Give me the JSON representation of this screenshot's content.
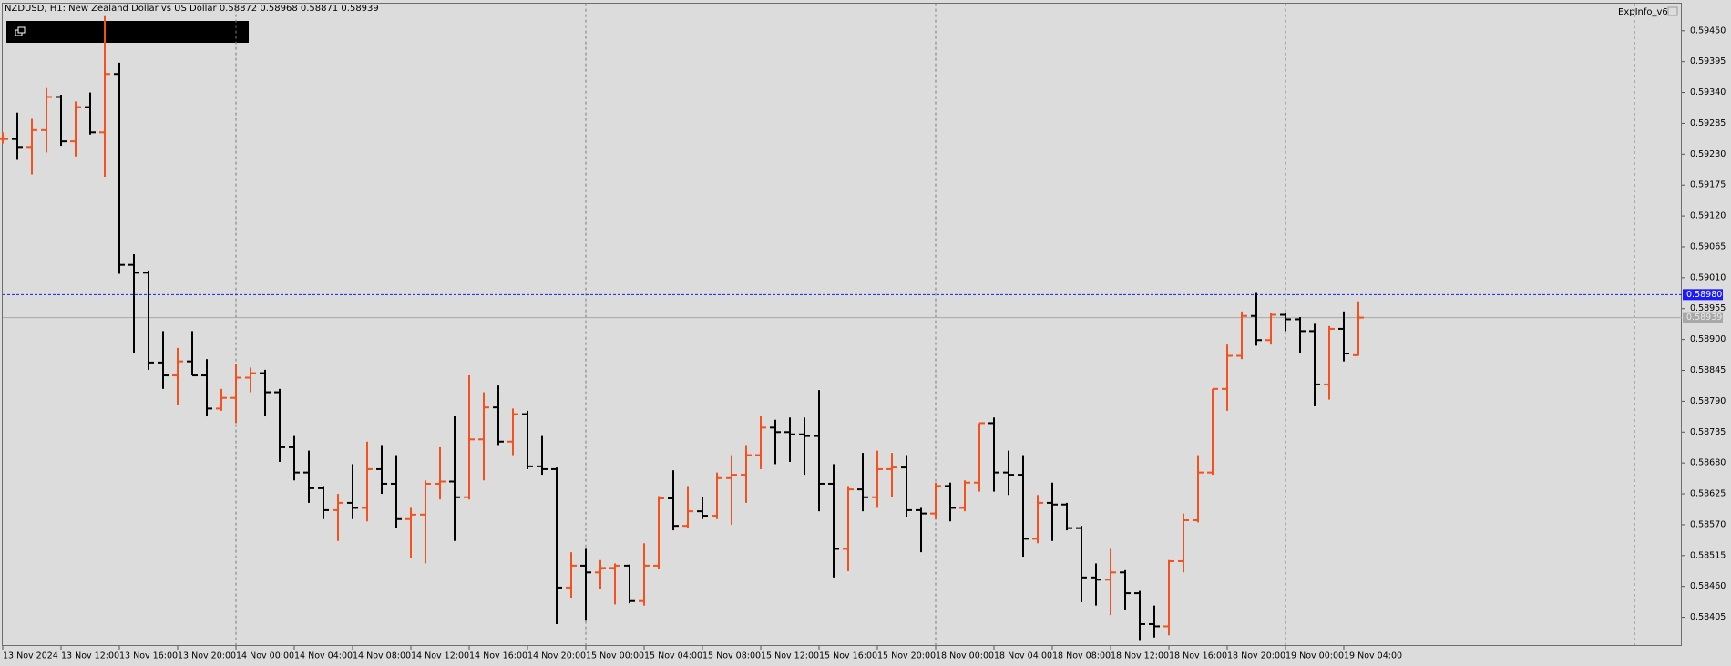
{
  "chart_data": {
    "type": "ohlc",
    "title": "NZDUSD, H1:  New Zealand Dollar vs US Dollar  0.58872 0.58968 0.58871 0.58939",
    "indicator_label": "ExpInfo_v6",
    "up_color": "#f4511e",
    "down_color": "#000000",
    "period_separators": true,
    "categories": [
      "13 Nov 2024",
      null,
      null,
      null,
      "13 Nov 12:00",
      null,
      null,
      null,
      "13 Nov 16:00",
      null,
      null,
      null,
      "13 Nov 20:00",
      null,
      null,
      null,
      "14 Nov 00:00",
      null,
      null,
      null,
      "14 Nov 04:00",
      null,
      null,
      null,
      "14 Nov 08:00",
      null,
      null,
      null,
      "14 Nov 12:00",
      null,
      null,
      null,
      "14 Nov 16:00",
      null,
      null,
      null,
      "14 Nov 20:00",
      null,
      null,
      null,
      "15 Nov 00:00",
      null,
      null,
      null,
      "15 Nov 04:00",
      null,
      null,
      null,
      "15 Nov 08:00",
      null,
      null,
      null,
      "15 Nov 12:00",
      null,
      null,
      null,
      "15 Nov 16:00",
      null,
      null,
      null,
      "15 Nov 20:00",
      null,
      null,
      null,
      "18 Nov 00:00",
      null,
      null,
      null,
      "18 Nov 04:00",
      null,
      null,
      null,
      "18 Nov 08:00",
      null,
      null,
      null,
      "18 Nov 12:00",
      null,
      null,
      null,
      "18 Nov 16:00",
      null,
      null,
      null,
      "18 Nov 20:00",
      null,
      null,
      null,
      "19 Nov 00:00",
      null,
      null,
      null,
      "19 Nov 04:00",
      null
    ],
    "open": [
      0.59257,
      0.59257,
      0.59243,
      0.59273,
      0.59332,
      0.59253,
      0.59314,
      0.59269,
      0.59373,
      0.59033,
      0.59019,
      0.58859,
      0.58836,
      0.58861,
      0.58836,
      0.58777,
      0.58796,
      0.58832,
      0.5884,
      0.58806,
      0.58708,
      0.58663,
      0.58635,
      0.58596,
      0.58609,
      0.586,
      0.58669,
      0.58643,
      0.5858,
      0.58588,
      0.58643,
      0.58647,
      0.58619,
      0.58722,
      0.58779,
      0.58718,
      0.58767,
      0.58674,
      0.58669,
      0.58458,
      0.58497,
      0.58485,
      0.58493,
      0.58497,
      0.58434,
      0.58497,
      0.58617,
      0.58568,
      0.58594,
      0.58586,
      0.58653,
      0.58659,
      0.58694,
      0.58743,
      0.58735,
      0.58731,
      0.58728,
      0.58643,
      0.58527,
      0.58633,
      0.58619,
      0.58669,
      0.58672,
      0.58596,
      0.5859,
      0.58639,
      0.586,
      0.58645,
      0.58751,
      0.58663,
      0.58659,
      0.58545,
      0.58609,
      0.58606,
      0.58564,
      0.58476,
      0.58472,
      0.58485,
      0.58448,
      0.58393,
      0.58389,
      0.58505,
      0.58578,
      0.58663,
      0.58812,
      0.58871,
      0.58942,
      0.58899,
      0.58944,
      0.58936,
      0.58915,
      0.5882,
      0.58919,
      0.58872
    ],
    "high": [
      0.59269,
      0.59304,
      0.59293,
      0.59348,
      0.59336,
      0.59324,
      0.5934,
      0.59476,
      0.59393,
      0.59052,
      0.59023,
      0.58915,
      0.58885,
      0.58915,
      0.58865,
      0.58812,
      0.58856,
      0.5885,
      0.58846,
      0.58812,
      0.58728,
      0.58702,
      0.58639,
      0.58625,
      0.58678,
      0.58718,
      0.58712,
      0.58694,
      0.586,
      0.58649,
      0.58708,
      0.58763,
      0.58836,
      0.58806,
      0.58818,
      0.58777,
      0.58773,
      0.58728,
      0.58672,
      0.58521,
      0.58527,
      0.58507,
      0.58501,
      0.58499,
      0.58537,
      0.58621,
      0.58667,
      0.58639,
      0.58619,
      0.58663,
      0.58694,
      0.58712,
      0.58763,
      0.58757,
      0.58761,
      0.58761,
      0.5881,
      0.58678,
      0.58639,
      0.58698,
      0.58702,
      0.58698,
      0.58694,
      0.586,
      0.58645,
      0.58645,
      0.58649,
      0.58751,
      0.58761,
      0.58702,
      0.58694,
      0.58623,
      0.58645,
      0.58609,
      0.58568,
      0.58501,
      0.58527,
      0.58489,
      0.58452,
      0.58426,
      0.58507,
      0.5859,
      0.58694,
      0.58812,
      0.58891,
      0.5895,
      0.58983,
      0.58948,
      0.58948,
      0.5894,
      0.58928,
      0.58924,
      0.5895,
      0.58968
    ],
    "low": [
      0.59249,
      0.5922,
      0.59194,
      0.59233,
      0.59245,
      0.59226,
      0.59265,
      0.5919,
      0.59017,
      0.58875,
      0.58846,
      0.58812,
      0.58783,
      0.58836,
      0.58763,
      0.58773,
      0.58751,
      0.58806,
      0.58763,
      0.58682,
      0.58649,
      0.58609,
      0.5858,
      0.58541,
      0.5858,
      0.58576,
      0.58625,
      0.58564,
      0.58511,
      0.58501,
      0.58615,
      0.58541,
      0.58615,
      0.58649,
      0.58712,
      0.58694,
      0.58669,
      0.58659,
      0.58393,
      0.5844,
      0.58399,
      0.58456,
      0.58428,
      0.5843,
      0.58426,
      0.58491,
      0.5856,
      0.58564,
      0.5858,
      0.5858,
      0.5857,
      0.58609,
      0.58669,
      0.58678,
      0.58682,
      0.58659,
      0.58594,
      0.58476,
      0.58487,
      0.58594,
      0.586,
      0.58619,
      0.58584,
      0.58521,
      0.5858,
      0.58576,
      0.58594,
      0.58629,
      0.58629,
      0.58623,
      0.58513,
      0.58537,
      0.58541,
      0.5856,
      0.58432,
      0.58426,
      0.58409,
      0.58419,
      0.58363,
      0.58369,
      0.58373,
      0.58485,
      0.58574,
      0.58659,
      0.58773,
      0.58865,
      0.58889,
      0.58891,
      0.58915,
      0.58875,
      0.58781,
      0.58793,
      0.58861,
      0.58871
    ],
    "close": [
      0.59257,
      0.59243,
      0.59273,
      0.59332,
      0.59253,
      0.59314,
      0.59269,
      0.59373,
      0.59033,
      0.59019,
      0.58859,
      0.58836,
      0.58861,
      0.58836,
      0.58777,
      0.58796,
      0.58832,
      0.5884,
      0.58806,
      0.58708,
      0.58663,
      0.58635,
      0.58596,
      0.58609,
      0.586,
      0.58669,
      0.58643,
      0.5858,
      0.58588,
      0.58643,
      0.58647,
      0.58619,
      0.58722,
      0.58779,
      0.58718,
      0.58767,
      0.58674,
      0.58669,
      0.58458,
      0.58497,
      0.58485,
      0.58493,
      0.58497,
      0.58434,
      0.58497,
      0.58617,
      0.58568,
      0.58594,
      0.58586,
      0.58653,
      0.58659,
      0.58694,
      0.58743,
      0.58735,
      0.58731,
      0.58728,
      0.58643,
      0.58527,
      0.58633,
      0.58619,
      0.58669,
      0.58672,
      0.58596,
      0.5859,
      0.58639,
      0.586,
      0.58645,
      0.58751,
      0.58663,
      0.58659,
      0.58545,
      0.58609,
      0.58606,
      0.58564,
      0.58476,
      0.58472,
      0.58485,
      0.58448,
      0.58393,
      0.58389,
      0.58505,
      0.58578,
      0.58663,
      0.58812,
      0.58871,
      0.58942,
      0.58899,
      0.58944,
      0.58936,
      0.58915,
      0.5882,
      0.58919,
      0.58875,
      0.58939
    ],
    "ylim": [
      0.58354,
      0.59499
    ],
    "yticks": [
      {
        "value": 0.5945,
        "label": "0.59450"
      },
      {
        "value": 0.59395,
        "label": "0.59395"
      },
      {
        "value": 0.5934,
        "label": "0.59340"
      },
      {
        "value": 0.59285,
        "label": "0.59285"
      },
      {
        "value": 0.5923,
        "label": "0.59230"
      },
      {
        "value": 0.59175,
        "label": "0.59175"
      },
      {
        "value": 0.5912,
        "label": "0.59120"
      },
      {
        "value": 0.59065,
        "label": "0.59065"
      },
      {
        "value": 0.5901,
        "label": "0.59010"
      },
      {
        "value": 0.58955,
        "label": "0.58955"
      },
      {
        "value": 0.589,
        "label": "0.58900"
      },
      {
        "value": 0.58845,
        "label": "0.58845"
      },
      {
        "value": 0.5879,
        "label": "0.58790"
      },
      {
        "value": 0.58735,
        "label": "0.58735"
      },
      {
        "value": 0.5868,
        "label": "0.58680"
      },
      {
        "value": 0.58625,
        "label": "0.58625"
      },
      {
        "value": 0.5857,
        "label": "0.58570"
      },
      {
        "value": 0.58515,
        "label": "0.58515"
      },
      {
        "value": 0.5846,
        "label": "0.58460"
      },
      {
        "value": 0.58405,
        "label": "0.58405"
      }
    ],
    "lines": [
      {
        "value": 0.5898,
        "label": "0.58980",
        "color": "#1a1aff"
      },
      {
        "value": 0.58939,
        "label": "0.58939",
        "color": "#a8a8a8"
      }
    ]
  }
}
